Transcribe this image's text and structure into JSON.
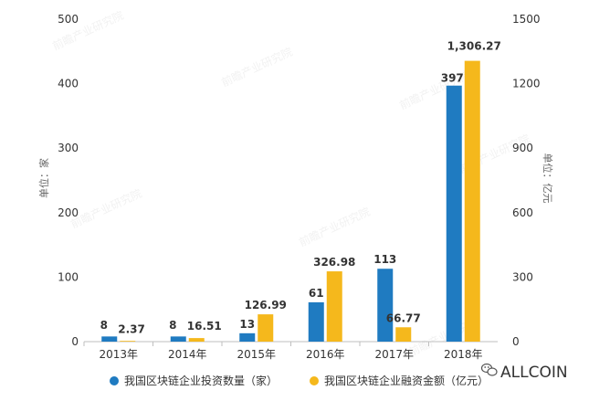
{
  "chart_data": {
    "type": "bar",
    "categories": [
      "2013年",
      "2014年",
      "2015年",
      "2016年",
      "2017年",
      "2018年"
    ],
    "series": [
      {
        "name": "我国区块链企业投资数量（家）",
        "axis": "left",
        "color": "#1f7bc1",
        "values": [
          8,
          8,
          13,
          61,
          113,
          397
        ],
        "labels": [
          "8",
          "8",
          "13",
          "61",
          "113",
          "397"
        ]
      },
      {
        "name": "我国区块链企业融资金额（亿元）",
        "axis": "right",
        "color": "#f5b81c",
        "values": [
          2.37,
          16.51,
          126.99,
          326.98,
          66.77,
          1306.27
        ],
        "labels": [
          "2.37",
          "16.51",
          "126.99",
          "326.98",
          "66.77",
          "1,306.27"
        ]
      }
    ],
    "ylabel": "单位：家",
    "ylabel_right": "单位：亿元",
    "ylim": [
      0,
      500
    ],
    "ylim_right": [
      0,
      1500
    ],
    "yticks": [
      0,
      100,
      200,
      300,
      400,
      500
    ],
    "yticks_right": [
      0,
      300,
      600,
      900,
      1200,
      1500
    ],
    "grid": false,
    "legend_position": "bottom"
  },
  "watermark": {
    "brand": "ALLCOIN",
    "brand_icon": "wechat-icon",
    "text": "前瞻产业研究院"
  }
}
